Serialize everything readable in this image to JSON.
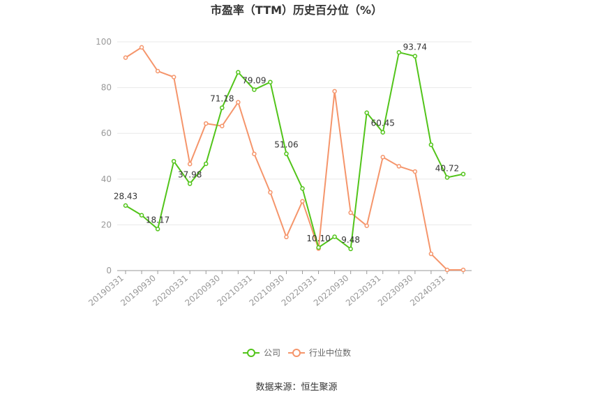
{
  "chart_data": {
    "type": "line",
    "title": "市盈率（TTM）历史百分位（%）",
    "source": "数据来源：恒生聚源",
    "ylim": [
      0,
      100
    ],
    "yticks": [
      0,
      20,
      40,
      60,
      80,
      100
    ],
    "grid": true,
    "legend_position": "bottom",
    "x": [
      "20190331",
      "20190630",
      "20190930",
      "20191231",
      "20200331",
      "20200630",
      "20200930",
      "20201231",
      "20210331",
      "20210630",
      "20210930",
      "20211231",
      "20220331",
      "20220630",
      "20220930",
      "20221231",
      "20230331",
      "20230630",
      "20230930",
      "20231231",
      "20240331",
      "20240630"
    ],
    "xtick_labels": [
      "20190331",
      "20190930",
      "20200331",
      "20200930",
      "20210331",
      "20210930",
      "20220331",
      "20220930",
      "20230331",
      "20230930",
      "20240331"
    ],
    "series": [
      {
        "name": "公司",
        "color": "#52c41a",
        "values": [
          28.43,
          24.2,
          18.17,
          47.8,
          37.98,
          46.7,
          71.18,
          86.7,
          79.09,
          82.4,
          51.06,
          35.9,
          10.1,
          14.8,
          9.48,
          69.0,
          60.45,
          95.4,
          93.74,
          55.0,
          40.72,
          42.2
        ],
        "labels": [
          "28.43",
          "",
          "18.17",
          "",
          "37.98",
          "",
          "71.18",
          "",
          "79.09",
          "",
          "51.06",
          "",
          "10.10",
          "",
          "9.48",
          "",
          "60.45",
          "",
          "93.74",
          "",
          "40.72",
          ""
        ]
      },
      {
        "name": "行业中位数",
        "color": "#f5956b",
        "values": [
          93.1,
          97.6,
          87.2,
          84.6,
          46.6,
          64.3,
          63.2,
          73.6,
          51.0,
          34.2,
          14.7,
          30.3,
          9.6,
          78.4,
          25.3,
          19.6,
          49.6,
          45.6,
          43.3,
          7.3,
          0.3,
          0.3
        ]
      }
    ]
  }
}
